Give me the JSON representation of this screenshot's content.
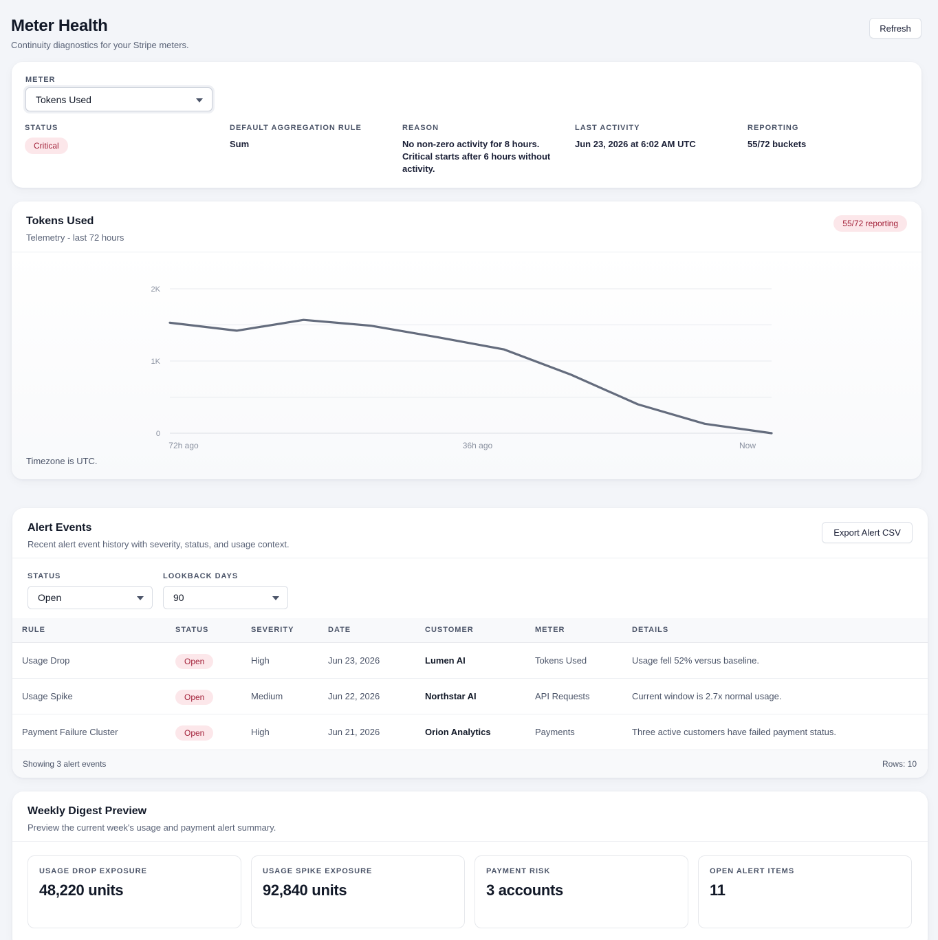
{
  "header": {
    "title": "Meter Health",
    "subtitle": "Continuity diagnostics for your Stripe meters.",
    "refresh_label": "Refresh"
  },
  "meter_card": {
    "meter_label": "METER",
    "meter_value": "Tokens Used",
    "status_label": "STATUS",
    "status_value": "Critical",
    "aggregation_label": "DEFAULT AGGREGATION RULE",
    "aggregation_value": "Sum",
    "reason_label": "REASON",
    "reason_value": "No non-zero activity for 8 hours. Critical starts after 6 hours without activity.",
    "last_activity_label": "LAST ACTIVITY",
    "last_activity_value": "Jun 23, 2026 at 6:02 AM UTC",
    "reporting_label": "REPORTING",
    "reporting_value": "55/72 buckets",
    "colors": {
      "critical_bg": "#fce7ea",
      "critical_text": "#a3223a"
    }
  },
  "chart_card": {
    "title": "Tokens Used",
    "subtitle": "Telemetry - last 72 hours",
    "badge": "55/72 reporting",
    "timezone_note": "Timezone is UTC."
  },
  "chart_data": {
    "type": "line",
    "x_labels": [
      "72h ago",
      "36h ago",
      "Now"
    ],
    "x": [
      72,
      64,
      56,
      48,
      40,
      32,
      24,
      16,
      8,
      0
    ],
    "series": [
      {
        "values": [
          1530,
          1420,
          1570,
          1490,
          1330,
          1160,
          810,
          400,
          130,
          0
        ]
      }
    ],
    "y_ticks": [
      "0",
      "1K",
      "2K"
    ],
    "ylim": [
      0,
      2000
    ],
    "grid": true,
    "line_color": "#646c7d"
  },
  "alerts_card": {
    "title": "Alert Events",
    "subtitle": "Recent alert event history with severity, status, and usage context.",
    "export_label": "Export Alert CSV",
    "status_filter_label": "STATUS",
    "status_filter_value": "Open",
    "lookback_label": "LOOKBACK DAYS",
    "lookback_value": "90",
    "columns": [
      "RULE",
      "STATUS",
      "SEVERITY",
      "DATE",
      "CUSTOMER",
      "METER",
      "DETAILS"
    ],
    "rows": [
      {
        "rule": "Usage Drop",
        "status": "Open",
        "severity": "High",
        "date": "Jun 23, 2026",
        "customer": "Lumen AI",
        "meter": "Tokens Used",
        "details": "Usage fell 52% versus baseline."
      },
      {
        "rule": "Usage Spike",
        "status": "Open",
        "severity": "Medium",
        "date": "Jun 22, 2026",
        "customer": "Northstar AI",
        "meter": "API Requests",
        "details": "Current window is 2.7x normal usage."
      },
      {
        "rule": "Payment Failure Cluster",
        "status": "Open",
        "severity": "High",
        "date": "Jun 21, 2026",
        "customer": "Orion Analytics",
        "meter": "Payments",
        "details": "Three active customers have failed payment status."
      }
    ],
    "footer_left": "Showing 3 alert events",
    "footer_right": "Rows: 10"
  },
  "digest_card": {
    "title": "Weekly Digest Preview",
    "subtitle": "Preview the current week's usage and payment alert summary.",
    "metrics": [
      {
        "label": "USAGE DROP EXPOSURE",
        "value": "48,220 units"
      },
      {
        "label": "USAGE SPIKE EXPOSURE",
        "value": "92,840 units"
      },
      {
        "label": "PAYMENT RISK",
        "value": "3 accounts"
      },
      {
        "label": "OPEN ALERT ITEMS",
        "value": "11"
      }
    ]
  }
}
